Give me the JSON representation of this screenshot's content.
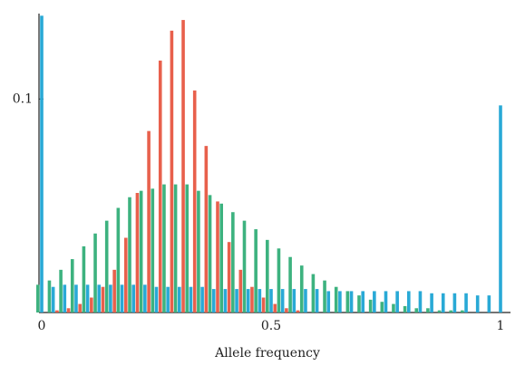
{
  "chart_data": {
    "type": "bar",
    "xlabel": "Allele frequency",
    "x": [
      0,
      0.025,
      0.05,
      0.075,
      0.1,
      0.125,
      0.15,
      0.175,
      0.2,
      0.225,
      0.25,
      0.275,
      0.3,
      0.325,
      0.35,
      0.375,
      0.4,
      0.425,
      0.45,
      0.475,
      0.5,
      0.525,
      0.55,
      0.575,
      0.6,
      0.625,
      0.65,
      0.675,
      0.7,
      0.725,
      0.75,
      0.775,
      0.8,
      0.825,
      0.85,
      0.875,
      0.9,
      0.925,
      0.95,
      0.975,
      1
    ],
    "series": [
      {
        "color": "#e8604c",
        "values": [
          0,
          0,
          0.001,
          0.002,
          0.004,
          0.007,
          0.012,
          0.02,
          0.035,
          0.056,
          0.085,
          0.118,
          0.132,
          0.137,
          0.104,
          0.078,
          0.052,
          0.033,
          0.02,
          0.012,
          0.007,
          0.004,
          0.002,
          0.001,
          0,
          0,
          0,
          0,
          0,
          0,
          0,
          0,
          0,
          0,
          0,
          0,
          0,
          0,
          0,
          0,
          0
        ]
      },
      {
        "color": "#3db27f",
        "values": [
          0.013,
          0.015,
          0.02,
          0.025,
          0.031,
          0.037,
          0.043,
          0.049,
          0.054,
          0.057,
          0.058,
          0.06,
          0.06,
          0.06,
          0.057,
          0.055,
          0.051,
          0.047,
          0.043,
          0.039,
          0.034,
          0.03,
          0.026,
          0.022,
          0.018,
          0.015,
          0.012,
          0.01,
          0.008,
          0.006,
          0.005,
          0.004,
          0.003,
          0.002,
          0.002,
          0.001,
          0.001,
          0.001,
          0,
          0,
          0
        ]
      },
      {
        "color": "#29a9d6",
        "values": [
          0.139,
          0.012,
          0.013,
          0.013,
          0.013,
          0.013,
          0.013,
          0.013,
          0.013,
          0.013,
          0.012,
          0.012,
          0.012,
          0.012,
          0.012,
          0.011,
          0.011,
          0.011,
          0.011,
          0.011,
          0.011,
          0.011,
          0.011,
          0.011,
          0.011,
          0.01,
          0.01,
          0.01,
          0.01,
          0.01,
          0.01,
          0.01,
          0.01,
          0.01,
          0.009,
          0.009,
          0.009,
          0.009,
          0.008,
          0.008,
          0.097
        ]
      }
    ],
    "xlim": [
      0,
      1
    ],
    "xticks": [
      0,
      0.5,
      1
    ],
    "ylim": [
      0,
      0.14
    ],
    "yticks": [
      0.1
    ]
  }
}
